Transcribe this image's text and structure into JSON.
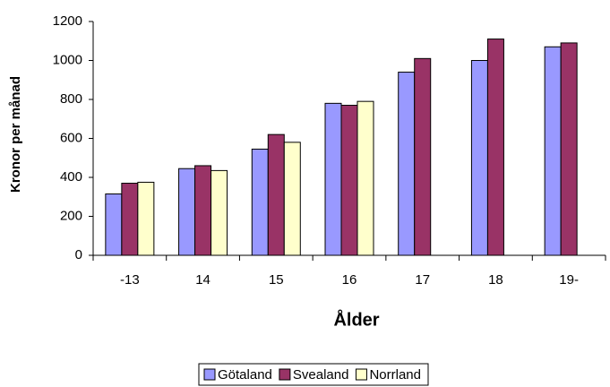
{
  "chart_data": {
    "type": "bar",
    "x_label": "Ålder",
    "y_label": "Kronor per månad",
    "categories": [
      "-13",
      "14",
      "15",
      "16",
      "17",
      "18",
      "19-"
    ],
    "series": [
      {
        "name": "Götaland",
        "color": "#9999ff",
        "values": [
          315,
          445,
          545,
          780,
          940,
          1000,
          1070
        ]
      },
      {
        "name": "Svealand",
        "color": "#993366",
        "values": [
          370,
          460,
          620,
          770,
          1010,
          1110,
          1090
        ]
      },
      {
        "name": "Norrland",
        "color": "#ffffcc",
        "values": [
          375,
          435,
          580,
          790,
          null,
          null,
          null
        ]
      }
    ],
    "ylim": [
      0,
      1200
    ],
    "yticks": [
      0,
      200,
      400,
      600,
      800,
      1000,
      1200
    ],
    "grid": false,
    "legend": "bottom"
  }
}
